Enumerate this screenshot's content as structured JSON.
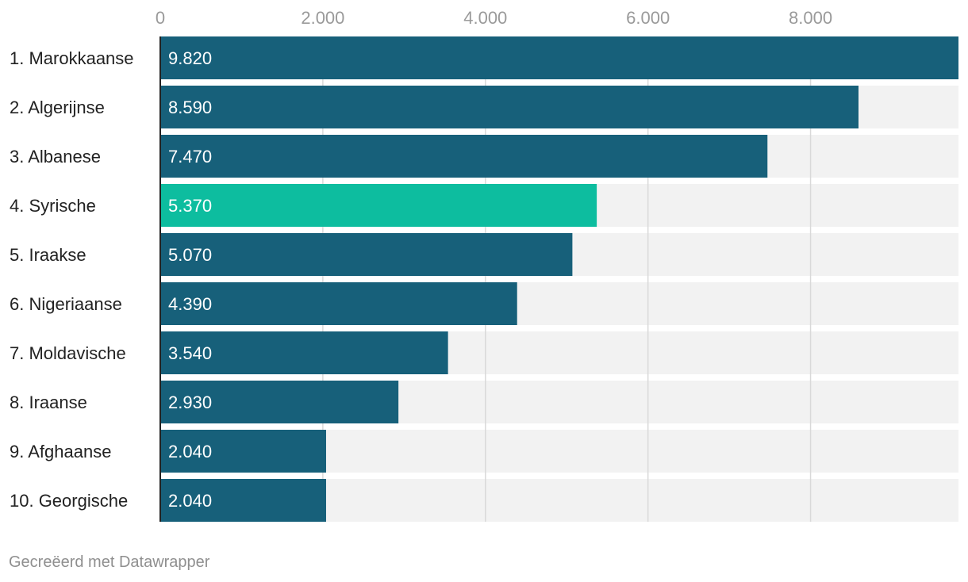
{
  "chart_data": {
    "type": "bar",
    "orientation": "horizontal",
    "categories": [
      "1. Marokkaanse",
      "2. Algerijnse",
      "3. Albanese",
      "4. Syrische",
      "5. Iraakse",
      "6. Nigeriaanse",
      "7. Moldavische",
      "8. Iraanse",
      "9. Afghaanse",
      "10. Georgische"
    ],
    "values": [
      9820,
      8590,
      7470,
      5370,
      5070,
      4390,
      3540,
      2930,
      2040,
      2040
    ],
    "value_labels": [
      "9.820",
      "8.590",
      "7.470",
      "5.370",
      "5.070",
      "4.390",
      "3.540",
      "2.930",
      "2.040",
      "2.040"
    ],
    "highlight_index": 3,
    "xlim": [
      0,
      9820
    ],
    "ticks": [
      0,
      2000,
      4000,
      6000,
      8000
    ],
    "tick_labels": [
      "0",
      "2.000",
      "4.000",
      "6.000",
      "8.000"
    ],
    "title": "",
    "xlabel": "",
    "ylabel": "",
    "grid": true
  },
  "colors": {
    "bar": "#17607a",
    "highlight": "#0dbd9f",
    "track": "#f2f2f2",
    "grid": "#d9d9d9",
    "axis": "#222222"
  },
  "footer": {
    "credit": "Gecreëerd met Datawrapper"
  }
}
